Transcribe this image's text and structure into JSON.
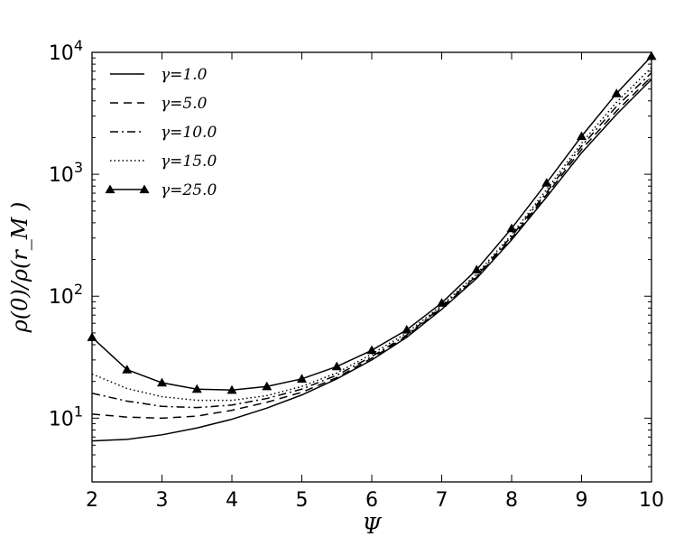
{
  "chart_data": {
    "type": "line",
    "title": "",
    "xlabel": "Ψ",
    "ylabel": "ρ(0)/ρ(r_M )",
    "xlim": [
      2,
      10
    ],
    "ylim": [
      3,
      10000
    ],
    "y_scale": "log",
    "grid": false,
    "legend_position": "top-left",
    "x_ticks": [
      2,
      3,
      4,
      5,
      6,
      7,
      8,
      9,
      10
    ],
    "x_tick_labels": [
      "2",
      "3",
      "4",
      "5",
      "6",
      "7",
      "8",
      "9",
      "10"
    ],
    "y_ticks": [
      10,
      100,
      1000,
      10000
    ],
    "y_tick_bases": [
      "10",
      "10",
      "10",
      "10"
    ],
    "y_tick_exponents": [
      "1",
      "2",
      "3",
      "4"
    ],
    "x": [
      2,
      2.5,
      3,
      3.5,
      4,
      4.5,
      5,
      5.5,
      6,
      6.5,
      7,
      7.5,
      8,
      8.5,
      9,
      9.5,
      10
    ],
    "series": [
      {
        "name": "γ=1.0",
        "line_style": "solid",
        "marker": "none",
        "values": [
          6.5,
          6.7,
          7.3,
          8.3,
          9.8,
          12.1,
          15.5,
          21,
          30,
          46,
          78,
          140,
          290,
          650,
          1500,
          3100,
          6000
        ]
      },
      {
        "name": "γ=5.0",
        "line_style": "dashed",
        "marker": "none",
        "values": [
          10.8,
          10.2,
          10.0,
          10.4,
          11.6,
          13.5,
          16.3,
          21.5,
          31,
          47,
          80,
          143,
          300,
          680,
          1600,
          3300,
          6300
        ]
      },
      {
        "name": "γ=10.0",
        "line_style": "dashdot",
        "marker": "none",
        "values": [
          16,
          13.8,
          12.5,
          12.2,
          12.8,
          14.5,
          17.3,
          22.5,
          32,
          48,
          82,
          147,
          310,
          710,
          1700,
          3600,
          6800
        ]
      },
      {
        "name": "γ=15.0",
        "line_style": "dotted",
        "marker": "none",
        "values": [
          23,
          17.5,
          15,
          14,
          14,
          15.3,
          18.2,
          23.5,
          33.5,
          50,
          84,
          152,
          320,
          750,
          1800,
          3900,
          7500
        ]
      },
      {
        "name": "γ=25.0",
        "line_style": "solid",
        "marker": "triangle",
        "values": [
          46,
          25,
          19.5,
          17.3,
          17,
          18.2,
          21,
          26.5,
          36,
          53,
          88,
          165,
          360,
          850,
          2050,
          4600,
          9300
        ]
      }
    ]
  }
}
